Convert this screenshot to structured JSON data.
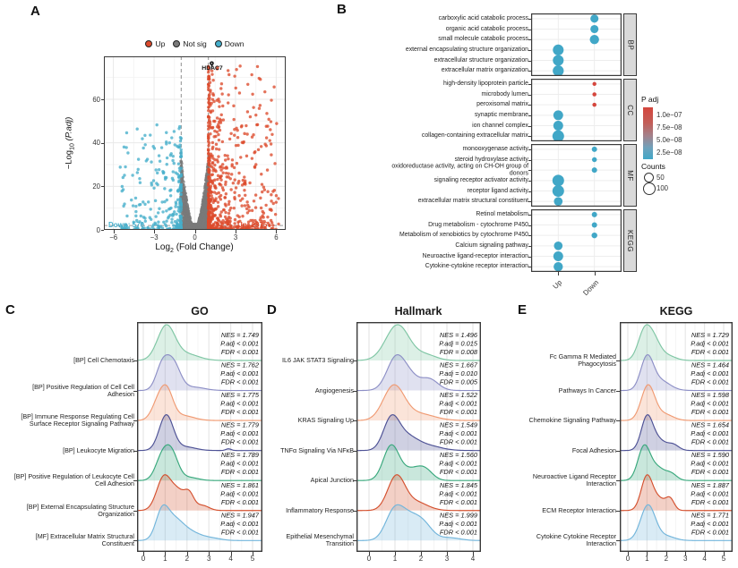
{
  "panels": {
    "a": "A",
    "b": "B",
    "c": "C",
    "d": "D",
    "e": "E"
  },
  "chart_data": [
    {
      "id": "volcano",
      "type": "scatter",
      "legend": {
        "items": [
          {
            "label": "Up",
            "color": "#DC4A2C"
          },
          {
            "label": "Not sig",
            "color": "#7a7a7a"
          },
          {
            "label": "Down",
            "color": "#45AECB"
          }
        ]
      },
      "xlabel": {
        "pre": "Log",
        "sub": "2",
        "post": " (Fold Change)"
      },
      "ylabel": {
        "pre": "−Log",
        "sub": "10",
        "post": " (P.adj)"
      },
      "xticks": [
        "−6",
        "−3",
        "0",
        "3",
        "6"
      ],
      "xtick_values": [
        -6,
        -3,
        0,
        3,
        6
      ],
      "yticks": [
        "0",
        "20",
        "40",
        "60"
      ],
      "ytick_values": [
        0,
        20,
        40,
        60
      ],
      "xlim": [
        -6.7,
        6.7
      ],
      "ylim": [
        0,
        79.7
      ],
      "fc_threshold": 1,
      "padj_line_y": 2,
      "annotation": {
        "label": "HDAC7",
        "x": 1.25,
        "y": 76.5
      },
      "down_count_label": "Down: 570",
      "up_count_label": "Up: 2375",
      "counts": {
        "up": 2375,
        "down": 570
      },
      "render": {
        "n_up": 660,
        "n_down": 280,
        "n_grey": 1500,
        "n_core": 700,
        "seed": 7
      }
    },
    {
      "id": "dotplot",
      "type": "dot",
      "x_categories": [
        "Up",
        "Down"
      ],
      "facets": [
        {
          "label": "BP",
          "rows": [
            {
              "term": "carboxylic acid catabolic process",
              "group": "Down",
              "count": 58,
              "padj": "2.5e−08",
              "color": "#41A7C7"
            },
            {
              "term": "organic acid catabolic process",
              "group": "Down",
              "count": 58,
              "padj": "2.5e−08",
              "color": "#41A7C7"
            },
            {
              "term": "small molecule catabolic process",
              "group": "Down",
              "count": 72,
              "padj": "2.5e−08",
              "color": "#41A7C7"
            },
            {
              "term": "external encapsulating structure organization",
              "group": "Up",
              "count": 90,
              "padj": "2.5e−08",
              "color": "#41A7C7"
            },
            {
              "term": "extracellular structure organization",
              "group": "Up",
              "count": 90,
              "padj": "2.5e−08",
              "color": "#41A7C7"
            },
            {
              "term": "extracellular matrix organization",
              "group": "Up",
              "count": 92,
              "padj": "2.5e−08",
              "color": "#41A7C7"
            }
          ]
        },
        {
          "label": "CC",
          "rows": [
            {
              "term": "high-density lipoprotein particle",
              "group": "Down",
              "count": 8,
              "padj": "1.0e−07",
              "color": "#D5463D"
            },
            {
              "term": "microbody lumen",
              "group": "Down",
              "count": 10,
              "padj": "1.0e−07",
              "color": "#D5463D"
            },
            {
              "term": "peroxisomal matrix",
              "group": "Down",
              "count": 10,
              "padj": "1.0e−07",
              "color": "#D5463D"
            },
            {
              "term": "synaptic membrane",
              "group": "Up",
              "count": 78,
              "padj": "2.5e−08",
              "color": "#41A7C7"
            },
            {
              "term": "ion channel complex",
              "group": "Up",
              "count": 78,
              "padj": "2.5e−08",
              "color": "#41A7C7"
            },
            {
              "term": "collagen-containing extracellular matrix",
              "group": "Up",
              "count": 100,
              "padj": "2.5e−08",
              "color": "#41A7C7"
            }
          ]
        },
        {
          "label": "MF",
          "rows": [
            {
              "term": "monooxygenase activity",
              "group": "Down",
              "count": 25,
              "padj": "2.5e−08",
              "color": "#41A7C7"
            },
            {
              "term": "steroid hydroxylase activity",
              "group": "Down",
              "count": 20,
              "padj": "2.5e−08",
              "color": "#41A7C7"
            },
            {
              "term": "oxidoreductase activity, acting on CH-OH group of donors",
              "group": "Down",
              "count": 25,
              "padj": "2.5e−08",
              "color": "#41A7C7"
            },
            {
              "term": "signaling receptor activator activity",
              "group": "Up",
              "count": 100,
              "padj": "2.5e−08",
              "color": "#41A7C7"
            },
            {
              "term": "receptor ligand activity",
              "group": "Up",
              "count": 100,
              "padj": "2.5e−08",
              "color": "#41A7C7"
            },
            {
              "term": "extracellular matrix structural constituent",
              "group": "Up",
              "count": 64,
              "padj": "2.5e−08",
              "color": "#41A7C7"
            }
          ]
        },
        {
          "label": "KEGG",
          "rows": [
            {
              "term": "Retinol metabolism",
              "group": "Down",
              "count": 25,
              "padj": "2.5e−08",
              "color": "#41A7C7"
            },
            {
              "term": "Drug metabolism - cytochrome P450",
              "group": "Down",
              "count": 25,
              "padj": "2.5e−08",
              "color": "#41A7C7"
            },
            {
              "term": "Metabolism of xenobiotics by cytochrome P450",
              "group": "Down",
              "count": 30,
              "padj": "2.5e−08",
              "color": "#41A7C7"
            },
            {
              "term": "Calcium signaling pathway",
              "group": "Up",
              "count": 64,
              "padj": "2.5e−08",
              "color": "#41A7C7"
            },
            {
              "term": "Neuroactive ligand-receptor interaction",
              "group": "Up",
              "count": 78,
              "padj": "2.5e−08",
              "color": "#41A7C7"
            },
            {
              "term": "Cytokine-cytokine receptor interaction",
              "group": "Up",
              "count": 72,
              "padj": "2.5e−08",
              "color": "#41A7C7"
            }
          ]
        }
      ],
      "legend": {
        "padj_title": "P adj",
        "padj_stops": [
          "1.0e−07",
          "7.5e−08",
          "5.0e−08",
          "2.5e−08"
        ],
        "padj_colors": [
          "#D5463D",
          "#41A7C7"
        ],
        "counts_title": "Counts",
        "count_items": [
          {
            "label": "50",
            "count": 50
          },
          {
            "label": "100",
            "count": 100
          }
        ]
      }
    },
    {
      "id": "go",
      "type": "ridge",
      "title": "GO",
      "xticks": [
        "0",
        "1",
        "2",
        "3",
        "4",
        "5"
      ],
      "rows": [
        {
          "label": "[BP] Cell Chemotaxis",
          "nes": "NES = 1.749",
          "padj": "P.adj < 0.001",
          "fdr": "FDR < 0.001",
          "color": "#7FC6A4",
          "peaks": [
            [
              1.05,
              0.4,
              1
            ],
            [
              2.0,
              0.55,
              0.18
            ]
          ]
        },
        {
          "label": "[BP] Positive Regulation of Cell Cell Adhesion",
          "nes": "NES = 1.762",
          "padj": "P.adj < 0.001",
          "fdr": "FDR < 0.001",
          "color": "#8D8FC6",
          "peaks": [
            [
              0.85,
              0.28,
              0.8
            ],
            [
              1.35,
              0.33,
              1
            ],
            [
              2.3,
              0.5,
              0.12
            ]
          ]
        },
        {
          "label": "[BP] Immune Response Regulating Cell Surface Receptor Signaling Pathway",
          "nes": "NES = 1.775",
          "padj": "P.adj < 0.001",
          "fdr": "FDR < 0.001",
          "color": "#F09A72",
          "peaks": [
            [
              0.7,
              0.3,
              0.75
            ],
            [
              1.1,
              0.28,
              1
            ],
            [
              1.8,
              0.5,
              0.2
            ]
          ]
        },
        {
          "label": "[BP] Leukocyte Migration",
          "nes": "NES = 1.779",
          "padj": "P.adj < 0.001",
          "fdr": "FDR < 0.001",
          "color": "#4D5195",
          "peaks": [
            [
              1.05,
              0.32,
              1
            ],
            [
              1.95,
              0.45,
              0.1
            ],
            [
              3.9,
              0.12,
              0.05
            ]
          ]
        },
        {
          "label": "[BP] Positive Regulation of Leukocyte Cell Cell Adhesion",
          "nes": "NES = 1.789",
          "padj": "P.adj < 0.001",
          "fdr": "FDR < 0.001",
          "color": "#38A87C",
          "peaks": [
            [
              0.85,
              0.3,
              0.85
            ],
            [
              1.3,
              0.3,
              1
            ],
            [
              2.1,
              0.4,
              0.12
            ]
          ]
        },
        {
          "label": "[BP] External Encapsulating Structure Organization",
          "nes": "NES = 1.861",
          "padj": "P.adj < 0.001",
          "fdr": "FDR < 0.001",
          "color": "#D4502E",
          "peaks": [
            [
              0.95,
              0.33,
              1
            ],
            [
              1.6,
              0.3,
              0.5
            ],
            [
              2.1,
              0.22,
              0.45
            ],
            [
              2.7,
              0.3,
              0.15
            ]
          ]
        },
        {
          "label": "[MF] Extracellular Matrix Structural Constituent",
          "nes": "NES = 1.947",
          "padj": "P.adj < 0.001",
          "fdr": "FDR < 0.001",
          "color": "#72B5DB",
          "peaks": [
            [
              0.85,
              0.28,
              0.95
            ],
            [
              1.35,
              0.45,
              0.85
            ],
            [
              2.2,
              0.5,
              0.3
            ],
            [
              3.2,
              0.4,
              0.08
            ]
          ]
        }
      ]
    },
    {
      "id": "hallmark",
      "type": "ridge",
      "title": "Hallmark",
      "xticks": [
        "0",
        "1",
        "2",
        "3",
        "4"
      ],
      "rows": [
        {
          "label": "IL6 JAK STAT3 Signaling",
          "nes": "NES = 1.496",
          "padj": "P.adj = 0.015",
          "fdr": "FDR = 0.008",
          "color": "#7FC6A4",
          "peaks": [
            [
              1.1,
              0.45,
              1
            ],
            [
              2.2,
              0.4,
              0.15
            ]
          ]
        },
        {
          "label": "Angiogenesis",
          "nes": "NES = 1.667",
          "padj": "P.adj = 0.010",
          "fdr": "FDR = 0.005",
          "color": "#8D8FC6",
          "peaks": [
            [
              1.05,
              0.35,
              1
            ],
            [
              1.6,
              0.3,
              0.3
            ],
            [
              2.3,
              0.35,
              0.35
            ]
          ]
        },
        {
          "label": "KRAS Signaling Up",
          "nes": "NES = 1.522",
          "padj": "P.adj < 0.001",
          "fdr": "FDR < 0.001",
          "color": "#F09A72",
          "peaks": [
            [
              0.95,
              0.4,
              1
            ],
            [
              1.9,
              0.6,
              0.2
            ]
          ]
        },
        {
          "label": "TNFα Signaling Via NFκB",
          "nes": "NES = 1.549",
          "padj": "P.adj < 0.001",
          "fdr": "FDR < 0.001",
          "color": "#4D5195",
          "peaks": [
            [
              0.85,
              0.3,
              1
            ],
            [
              1.4,
              0.45,
              0.5
            ],
            [
              2.3,
              0.5,
              0.15
            ]
          ]
        },
        {
          "label": "Apical Junction",
          "nes": "NES = 1.560",
          "padj": "P.adj < 0.001",
          "fdr": "FDR < 0.001",
          "color": "#38A87C",
          "peaks": [
            [
              0.85,
              0.3,
              1
            ],
            [
              1.6,
              0.4,
              0.3
            ],
            [
              2.15,
              0.3,
              0.28
            ]
          ]
        },
        {
          "label": "Inflammatory Response",
          "nes": "NES = 1.845",
          "padj": "P.adj < 0.001",
          "fdr": "FDR < 0.001",
          "color": "#D4502E",
          "peaks": [
            [
              1.05,
              0.33,
              1
            ],
            [
              1.8,
              0.45,
              0.25
            ]
          ]
        },
        {
          "label": "Epithelial Mesenchymal Transition",
          "nes": "NES = 1.999",
          "padj": "P.adj < 0.001",
          "fdr": "FDR < 0.001",
          "color": "#72B5DB",
          "peaks": [
            [
              0.95,
              0.33,
              0.9
            ],
            [
              1.5,
              0.4,
              0.75
            ],
            [
              2.1,
              0.35,
              0.5
            ],
            [
              3.1,
              0.4,
              0.1
            ]
          ]
        }
      ]
    },
    {
      "id": "kegg",
      "type": "ridge",
      "title": "KEGG",
      "xticks": [
        "0",
        "1",
        "2",
        "3",
        "4",
        "5"
      ],
      "rows": [
        {
          "label": "Fc Gamma R Mediated Phagocytosis",
          "nes": "NES = 1.729",
          "padj": "P.adj < 0.001",
          "fdr": "FDR < 0.001",
          "color": "#7FC6A4",
          "peaks": [
            [
              0.85,
              0.33,
              0.9
            ],
            [
              1.35,
              0.35,
              0.65
            ],
            [
              2.1,
              0.4,
              0.15
            ]
          ]
        },
        {
          "label": "Pathways In Cancer",
          "nes": "NES = 1.464",
          "padj": "P.adj < 0.001",
          "fdr": "FDR < 0.001",
          "color": "#8D8FC6",
          "peaks": [
            [
              1.0,
              0.33,
              1
            ],
            [
              1.7,
              0.5,
              0.3
            ]
          ]
        },
        {
          "label": "Chemokine Signaling Pathway",
          "nes": "NES = 1.598",
          "padj": "P.adj < 0.001",
          "fdr": "FDR < 0.001",
          "color": "#F09A72",
          "peaks": [
            [
              1.05,
              0.35,
              1
            ],
            [
              1.9,
              0.45,
              0.18
            ]
          ]
        },
        {
          "label": "Focal Adhesion",
          "nes": "NES = 1.654",
          "padj": "P.adj < 0.001",
          "fdr": "FDR < 0.001",
          "color": "#4D5195",
          "peaks": [
            [
              1.0,
              0.3,
              1
            ],
            [
              1.6,
              0.35,
              0.3
            ],
            [
              2.35,
              0.3,
              0.18
            ]
          ]
        },
        {
          "label": "Neuroactive Ligand Receptor Interaction",
          "nes": "NES = 1.590",
          "padj": "P.adj < 0.001",
          "fdr": "FDR < 0.001",
          "color": "#38A87C",
          "peaks": [
            [
              0.85,
              0.32,
              1
            ],
            [
              1.55,
              0.35,
              0.35
            ],
            [
              2.25,
              0.3,
              0.2
            ]
          ]
        },
        {
          "label": "ECM Receptor Interaction",
          "nes": "NES = 1.887",
          "padj": "P.adj < 0.001",
          "fdr": "FDR < 0.001",
          "color": "#D4502E",
          "peaks": [
            [
              1.0,
              0.3,
              1
            ],
            [
              1.65,
              0.3,
              0.3
            ],
            [
              2.2,
              0.22,
              0.33
            ]
          ]
        },
        {
          "label": "Cytokine Cytokine Receptor Interaction",
          "nes": "NES = 1.771",
          "padj": "P.adj < 0.001",
          "fdr": "FDR < 0.001",
          "color": "#72B5DB",
          "peaks": [
            [
              1.05,
              0.38,
              1
            ],
            [
              2.0,
              0.45,
              0.12
            ]
          ]
        }
      ]
    }
  ]
}
